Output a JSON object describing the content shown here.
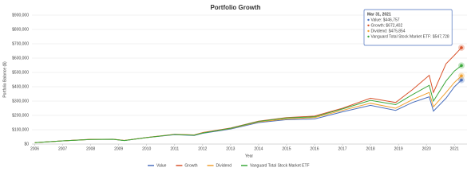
{
  "chart_data": {
    "type": "line",
    "title": "Portfolio Growth",
    "x_label": "Year",
    "y_label": "Portfolio Balance ($)",
    "x": [
      2006,
      2007,
      2008,
      2008.8,
      2009.2,
      2010,
      2011,
      2011.7,
      2012,
      2013,
      2014,
      2015,
      2016,
      2017,
      2018,
      2018.9,
      2019.5,
      2020.1,
      2020.25,
      2020.7,
      2021,
      2021.25
    ],
    "series": [
      {
        "name": "Value",
        "color": "#4a6fbd",
        "values": [
          10000,
          22000,
          32000,
          33000,
          24000,
          45000,
          65000,
          60000,
          75000,
          105000,
          150000,
          170000,
          175000,
          225000,
          270000,
          235000,
          290000,
          330000,
          230000,
          320000,
          400000,
          446757
        ]
      },
      {
        "name": "Growth",
        "color": "#d9532c",
        "values": [
          10000,
          22000,
          33000,
          34000,
          25000,
          46000,
          68000,
          64000,
          80000,
          112000,
          160000,
          185000,
          195000,
          250000,
          320000,
          290000,
          380000,
          480000,
          360000,
          560000,
          620000,
          672402
        ]
      },
      {
        "name": "Dividend",
        "color": "#f0a030",
        "values": [
          10000,
          22000,
          32000,
          33000,
          25000,
          45000,
          67000,
          63000,
          78000,
          108000,
          155000,
          175000,
          185000,
          235000,
          285000,
          250000,
          310000,
          360000,
          260000,
          360000,
          430000,
          475854
        ]
      },
      {
        "name": "Vanguard Total Stock Market ETF",
        "color": "#3aa83a",
        "values": [
          10000,
          22000,
          32000,
          33000,
          24000,
          45000,
          67000,
          62000,
          77000,
          110000,
          158000,
          182000,
          190000,
          245000,
          305000,
          275000,
          345000,
          410000,
          300000,
          440000,
          510000,
          547728
        ]
      }
    ],
    "xlim": [
      2005.9,
      2021.45
    ],
    "xticks": [
      2006,
      2007,
      2008,
      2009,
      2010,
      2011,
      2012,
      2013,
      2014,
      2015,
      2016,
      2017,
      2018,
      2019,
      2020,
      2021
    ],
    "ylim": [
      0,
      900000
    ],
    "yticks": [
      {
        "value": 0,
        "label": "$0"
      },
      {
        "value": 100000,
        "label": "$100,000"
      },
      {
        "value": 200000,
        "label": "$200,000"
      },
      {
        "value": 300000,
        "label": "$300,000"
      },
      {
        "value": 400000,
        "label": "$400,000"
      },
      {
        "value": 500000,
        "label": "$500,000"
      },
      {
        "value": 600000,
        "label": "$600,000"
      },
      {
        "value": 700000,
        "label": "$700,000"
      },
      {
        "value": 800000,
        "label": "$800,000"
      },
      {
        "value": 900000,
        "label": "$900,000"
      }
    ],
    "grid": true,
    "legend": "bottom",
    "tooltip": {
      "title": "Mar 31, 2021",
      "lines": [
        "Value: $446,757",
        "Growth: $672,402",
        "Dividend: $475,854",
        "Vanguard Total Stock Market ETF: $547,728"
      ]
    }
  }
}
